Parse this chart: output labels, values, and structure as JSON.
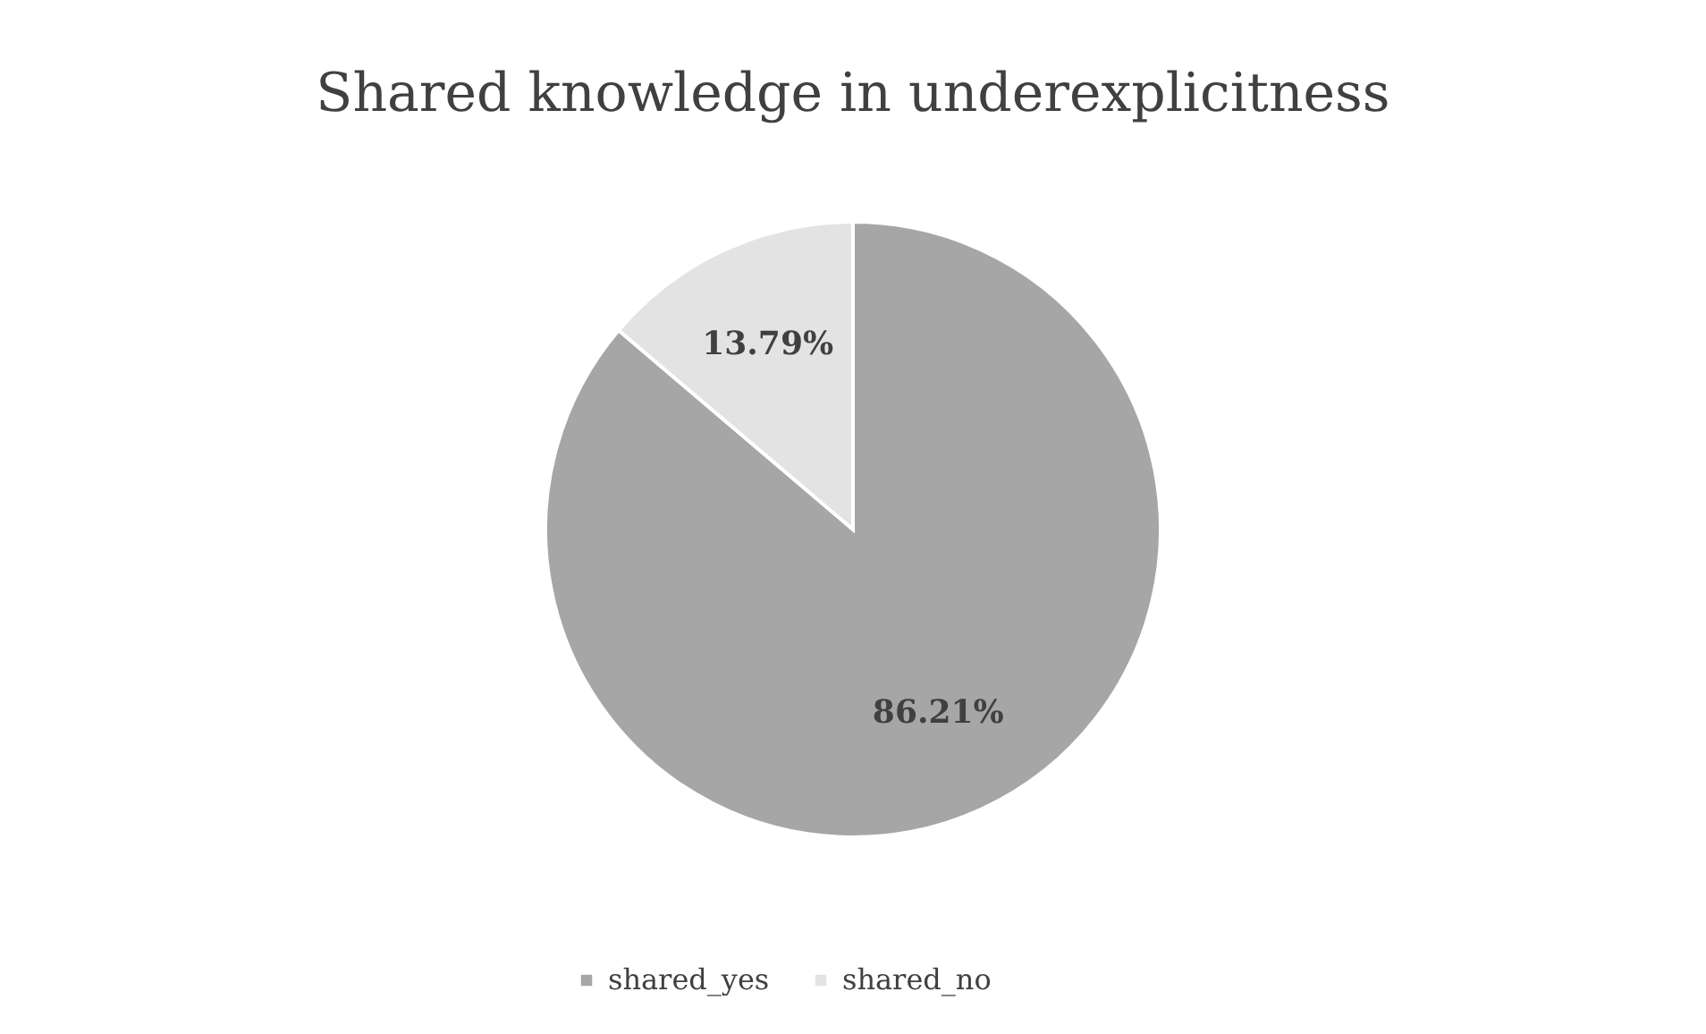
{
  "chart_data": {
    "type": "pie",
    "title": "Shared knowledge in underexplicitness",
    "categories": [
      "shared_yes",
      "shared_no"
    ],
    "values": [
      86.21,
      13.79
    ],
    "colors": [
      "#a6a6a6",
      "#e3e3e3"
    ],
    "value_labels": [
      "86.21%",
      "13.79%"
    ],
    "legend": "bottom"
  }
}
